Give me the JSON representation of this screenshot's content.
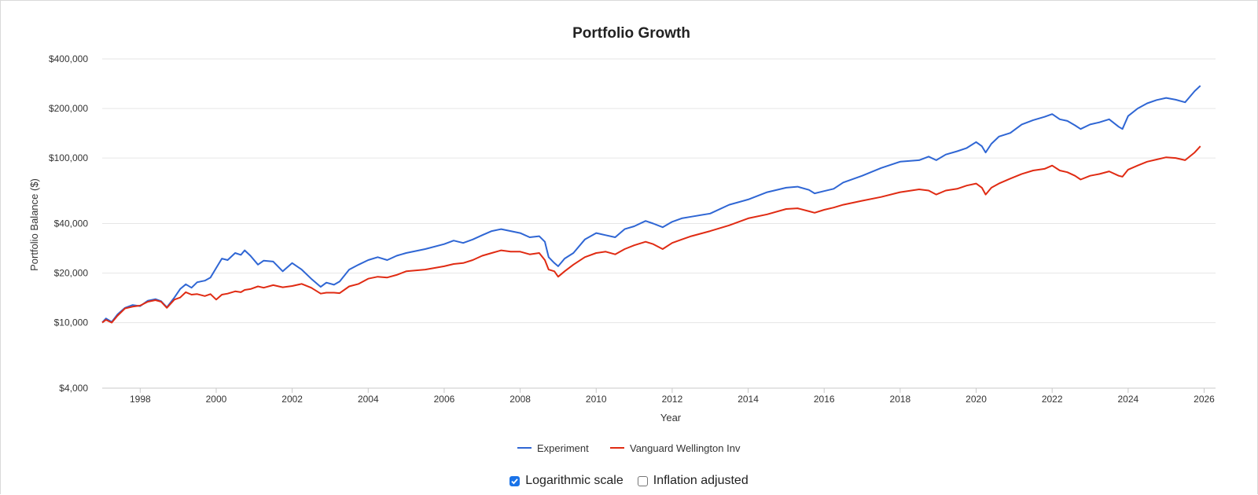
{
  "chart_data": {
    "type": "line",
    "title": "Portfolio Growth",
    "xlabel": "Year",
    "ylabel": "Portfolio Balance ($)",
    "yscale": "log",
    "ylim": [
      4000,
      400000
    ],
    "xlim": [
      1997.0,
      2026.3
    ],
    "yticks": [
      4000,
      10000,
      20000,
      40000,
      100000,
      200000,
      400000
    ],
    "ytick_labels": [
      "$4,000",
      "$10,000",
      "$20,000",
      "$40,000",
      "$100,000",
      "$200,000",
      "$400,000"
    ],
    "xticks": [
      1998,
      2000,
      2002,
      2004,
      2006,
      2008,
      2010,
      2012,
      2014,
      2016,
      2018,
      2020,
      2022,
      2024,
      2026
    ],
    "xtick_labels": [
      "1998",
      "2000",
      "2002",
      "2004",
      "2006",
      "2008",
      "2010",
      "2012",
      "2014",
      "2016",
      "2018",
      "2020",
      "2022",
      "2024",
      "2026"
    ],
    "grid": true,
    "legend": "bottom",
    "series": [
      {
        "name": "Experiment",
        "color": "#2f66d4",
        "x": [
          1997.0,
          1997.1,
          1997.25,
          1997.4,
          1997.6,
          1997.8,
          1998.0,
          1998.2,
          1998.4,
          1998.55,
          1998.7,
          1998.9,
          1999.05,
          1999.2,
          1999.35,
          1999.5,
          1999.7,
          1999.85,
          2000.0,
          2000.15,
          2000.3,
          2000.5,
          2000.65,
          2000.75,
          2000.9,
          2001.1,
          2001.25,
          2001.5,
          2001.75,
          2002.0,
          2002.25,
          2002.5,
          2002.75,
          2002.9,
          2003.1,
          2003.25,
          2003.5,
          2003.75,
          2004.0,
          2004.25,
          2004.5,
          2004.75,
          2005.0,
          2005.5,
          2006.0,
          2006.25,
          2006.5,
          2006.75,
          2007.0,
          2007.25,
          2007.5,
          2007.75,
          2008.0,
          2008.25,
          2008.5,
          2008.65,
          2008.75,
          2008.9,
          2009.0,
          2009.17,
          2009.4,
          2009.7,
          2010.0,
          2010.25,
          2010.5,
          2010.75,
          2011.0,
          2011.3,
          2011.5,
          2011.75,
          2012.0,
          2012.25,
          2012.5,
          2013.0,
          2013.5,
          2014.0,
          2014.5,
          2015.0,
          2015.3,
          2015.6,
          2015.75,
          2016.0,
          2016.25,
          2016.5,
          2017.0,
          2017.5,
          2018.0,
          2018.5,
          2018.75,
          2018.95,
          2019.2,
          2019.5,
          2019.75,
          2020.0,
          2020.15,
          2020.25,
          2020.4,
          2020.6,
          2020.9,
          2021.2,
          2021.5,
          2021.8,
          2022.0,
          2022.2,
          2022.4,
          2022.6,
          2022.75,
          2023.0,
          2023.25,
          2023.5,
          2023.75,
          2023.85,
          2024.0,
          2024.25,
          2024.5,
          2024.75,
          2025.0,
          2025.25,
          2025.5,
          2025.75,
          2025.9
        ],
        "values": [
          10000,
          10600,
          10100,
          11200,
          12300,
          12800,
          12600,
          13600,
          13900,
          13500,
          12400,
          14200,
          16000,
          17100,
          16300,
          17600,
          18000,
          18800,
          21500,
          24500,
          24000,
          26500,
          25800,
          27500,
          25500,
          22500,
          23800,
          23500,
          20500,
          23000,
          21000,
          18500,
          16500,
          17500,
          17000,
          17800,
          21000,
          22500,
          24000,
          25000,
          24000,
          25500,
          26500,
          28000,
          30000,
          31500,
          30500,
          32000,
          34000,
          36000,
          37000,
          36000,
          35000,
          33000,
          33500,
          31000,
          25000,
          23000,
          22000,
          24500,
          26500,
          32000,
          35000,
          34000,
          33000,
          37000,
          38500,
          41500,
          40000,
          38000,
          41000,
          43000,
          44000,
          46000,
          52000,
          56000,
          62000,
          66000,
          67000,
          64000,
          61000,
          63000,
          65000,
          71000,
          78000,
          87000,
          95000,
          97000,
          102000,
          97000,
          105000,
          110000,
          115000,
          125000,
          118000,
          108000,
          122000,
          135000,
          142000,
          160000,
          170000,
          178000,
          185000,
          172000,
          168000,
          158000,
          150000,
          160000,
          165000,
          172000,
          155000,
          150000,
          180000,
          200000,
          215000,
          225000,
          232000,
          226000,
          218000,
          255000,
          275000
        ]
      },
      {
        "name": "Vanguard Wellington Inv",
        "color": "#e02b13",
        "x": [
          1997.0,
          1997.1,
          1997.25,
          1997.4,
          1997.6,
          1997.8,
          1998.0,
          1998.2,
          1998.4,
          1998.55,
          1998.7,
          1998.9,
          1999.05,
          1999.2,
          1999.35,
          1999.5,
          1999.7,
          1999.85,
          2000.0,
          2000.15,
          2000.3,
          2000.5,
          2000.65,
          2000.75,
          2000.9,
          2001.1,
          2001.25,
          2001.5,
          2001.75,
          2002.0,
          2002.25,
          2002.5,
          2002.75,
          2002.9,
          2003.1,
          2003.25,
          2003.5,
          2003.75,
          2004.0,
          2004.25,
          2004.5,
          2004.75,
          2005.0,
          2005.5,
          2006.0,
          2006.25,
          2006.5,
          2006.75,
          2007.0,
          2007.25,
          2007.5,
          2007.75,
          2008.0,
          2008.25,
          2008.5,
          2008.65,
          2008.75,
          2008.9,
          2009.0,
          2009.17,
          2009.4,
          2009.7,
          2010.0,
          2010.25,
          2010.5,
          2010.75,
          2011.0,
          2011.3,
          2011.5,
          2011.75,
          2012.0,
          2012.25,
          2012.5,
          2013.0,
          2013.5,
          2014.0,
          2014.5,
          2015.0,
          2015.3,
          2015.6,
          2015.75,
          2016.0,
          2016.25,
          2016.5,
          2017.0,
          2017.5,
          2018.0,
          2018.5,
          2018.75,
          2018.95,
          2019.2,
          2019.5,
          2019.75,
          2020.0,
          2020.15,
          2020.25,
          2020.4,
          2020.6,
          2020.9,
          2021.2,
          2021.5,
          2021.8,
          2022.0,
          2022.2,
          2022.4,
          2022.6,
          2022.75,
          2023.0,
          2023.25,
          2023.5,
          2023.75,
          2023.85,
          2024.0,
          2024.25,
          2024.5,
          2024.75,
          2025.0,
          2025.25,
          2025.5,
          2025.75,
          2025.9
        ],
        "values": [
          10000,
          10400,
          10000,
          11000,
          12200,
          12500,
          12700,
          13400,
          13700,
          13400,
          12300,
          13800,
          14200,
          15300,
          14800,
          14900,
          14500,
          14900,
          13800,
          14800,
          15000,
          15500,
          15300,
          15800,
          16000,
          16600,
          16300,
          16900,
          16400,
          16700,
          17200,
          16300,
          15000,
          15200,
          15200,
          15100,
          16600,
          17200,
          18500,
          19000,
          18800,
          19500,
          20500,
          21000,
          22000,
          22700,
          23000,
          24000,
          25500,
          26500,
          27500,
          27000,
          27000,
          26000,
          26500,
          24000,
          21000,
          20500,
          19000,
          20500,
          22500,
          25000,
          26500,
          27000,
          26000,
          28000,
          29500,
          31000,
          30000,
          28000,
          30500,
          32000,
          33500,
          36000,
          39000,
          43000,
          45500,
          49000,
          49500,
          47500,
          46500,
          48500,
          50000,
          52000,
          55000,
          58000,
          62000,
          64500,
          63500,
          60000,
          63500,
          65000,
          68000,
          70000,
          66000,
          60000,
          66000,
          70000,
          75000,
          80000,
          84000,
          86000,
          90000,
          84000,
          82000,
          78000,
          74000,
          78000,
          80000,
          83000,
          78000,
          77000,
          85000,
          90000,
          95000,
          98000,
          101000,
          100000,
          97000,
          108000,
          118000
        ]
      }
    ]
  },
  "controls": {
    "log_scale": {
      "label": "Logarithmic scale",
      "checked": true
    },
    "inflation": {
      "label": "Inflation adjusted",
      "checked": false
    }
  }
}
